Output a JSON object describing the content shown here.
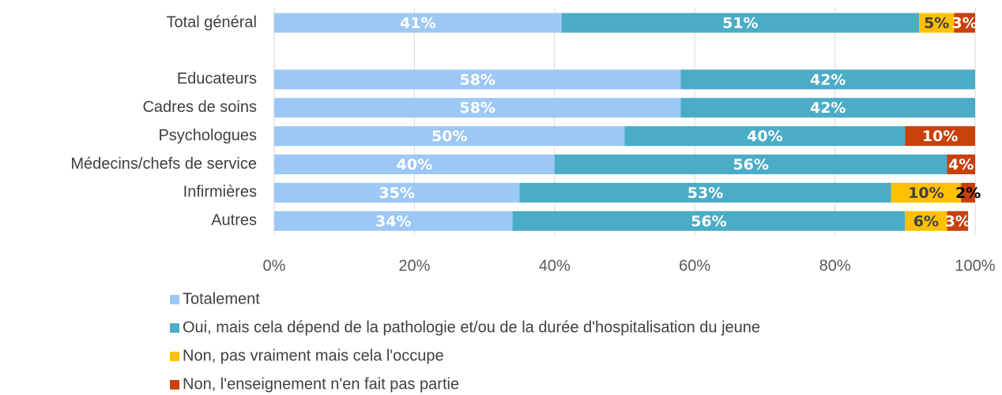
{
  "chart_data": {
    "type": "stacked_bar_horizontal",
    "categories": [
      "Total général",
      null,
      "Educateurs",
      "Cadres de soins",
      "Psychologues",
      "Médecins/chefs de service",
      "Infirmières",
      "Autres"
    ],
    "series": [
      {
        "name": "Totalement",
        "color": "#9DC8F5",
        "label_color": "#ffffff",
        "values": [
          41,
          null,
          58,
          58,
          50,
          40,
          35,
          34
        ],
        "value_labels": [
          "41%",
          null,
          "58%",
          "58%",
          "50%",
          "40%",
          "35%",
          "34%"
        ]
      },
      {
        "name": "Oui, mais cela dépend de la pathologie et/ou de la durée d'hospitalisation du jeune",
        "color": "#4BACC6",
        "label_color": "#ffffff",
        "values": [
          51,
          null,
          42,
          42,
          40,
          56,
          53,
          56
        ],
        "value_labels": [
          "51%",
          null,
          "42%",
          "42%",
          "40%",
          "56%",
          "53%",
          "56%"
        ]
      },
      {
        "name": "Non, pas vraiment mais cela l'occupe",
        "color": "#FFC000",
        "label_color": "#404040",
        "values": [
          5,
          null,
          null,
          null,
          null,
          null,
          10,
          6
        ],
        "value_labels": [
          "5%",
          null,
          null,
          null,
          null,
          null,
          "10%",
          "6%"
        ]
      },
      {
        "name": "Non, l'enseignement n'en fait pas partie",
        "color": "#C9400C",
        "label_color": "#ffffff",
        "values": [
          3,
          null,
          null,
          null,
          10,
          4,
          2,
          3
        ],
        "value_labels": [
          "3%",
          null,
          null,
          null,
          "10%",
          "4%",
          "2%",
          "3%"
        ]
      }
    ],
    "xlim": [
      0,
      100
    ],
    "xticks": [
      {
        "value": 0,
        "label": "0%"
      },
      {
        "value": 20,
        "label": "20%"
      },
      {
        "value": 40,
        "label": "40%"
      },
      {
        "value": 60,
        "label": "60%"
      },
      {
        "value": 80,
        "label": "80%"
      },
      {
        "value": 100,
        "label": "100%"
      }
    ],
    "grid": true,
    "legend": "bottom"
  }
}
